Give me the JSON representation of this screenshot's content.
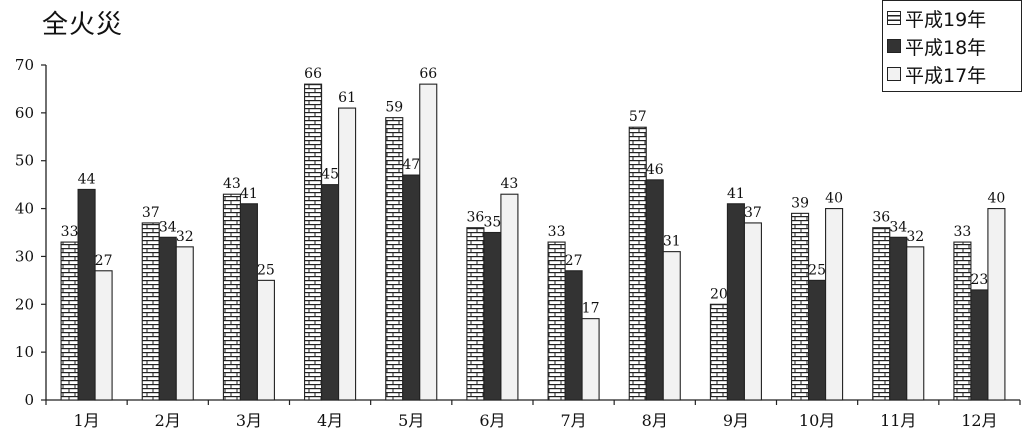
{
  "title": "全火災",
  "chart_data": {
    "type": "bar",
    "title": "全火災",
    "xlabel": "",
    "ylabel": "",
    "ylim": [
      0,
      70
    ],
    "yticks": [
      0,
      10,
      20,
      30,
      40,
      50,
      60,
      70
    ],
    "categories": [
      "1月",
      "2月",
      "3月",
      "4月",
      "5月",
      "6月",
      "7月",
      "8月",
      "9月",
      "10月",
      "11月",
      "12月"
    ],
    "series": [
      {
        "name": "平成19年",
        "values": [
          33,
          37,
          43,
          66,
          59,
          36,
          33,
          57,
          20,
          39,
          36,
          33
        ],
        "pattern": "brick",
        "color": "#ffffff"
      },
      {
        "name": "平成18年",
        "values": [
          44,
          34,
          41,
          45,
          47,
          35,
          27,
          46,
          41,
          25,
          34,
          23
        ],
        "pattern": "solid",
        "color": "#333333"
      },
      {
        "name": "平成17年",
        "values": [
          27,
          32,
          25,
          61,
          66,
          43,
          17,
          31,
          37,
          40,
          32,
          40
        ],
        "pattern": "solid",
        "color": "#f2f2f2"
      }
    ],
    "legend_position": "top-right",
    "grid": false
  }
}
